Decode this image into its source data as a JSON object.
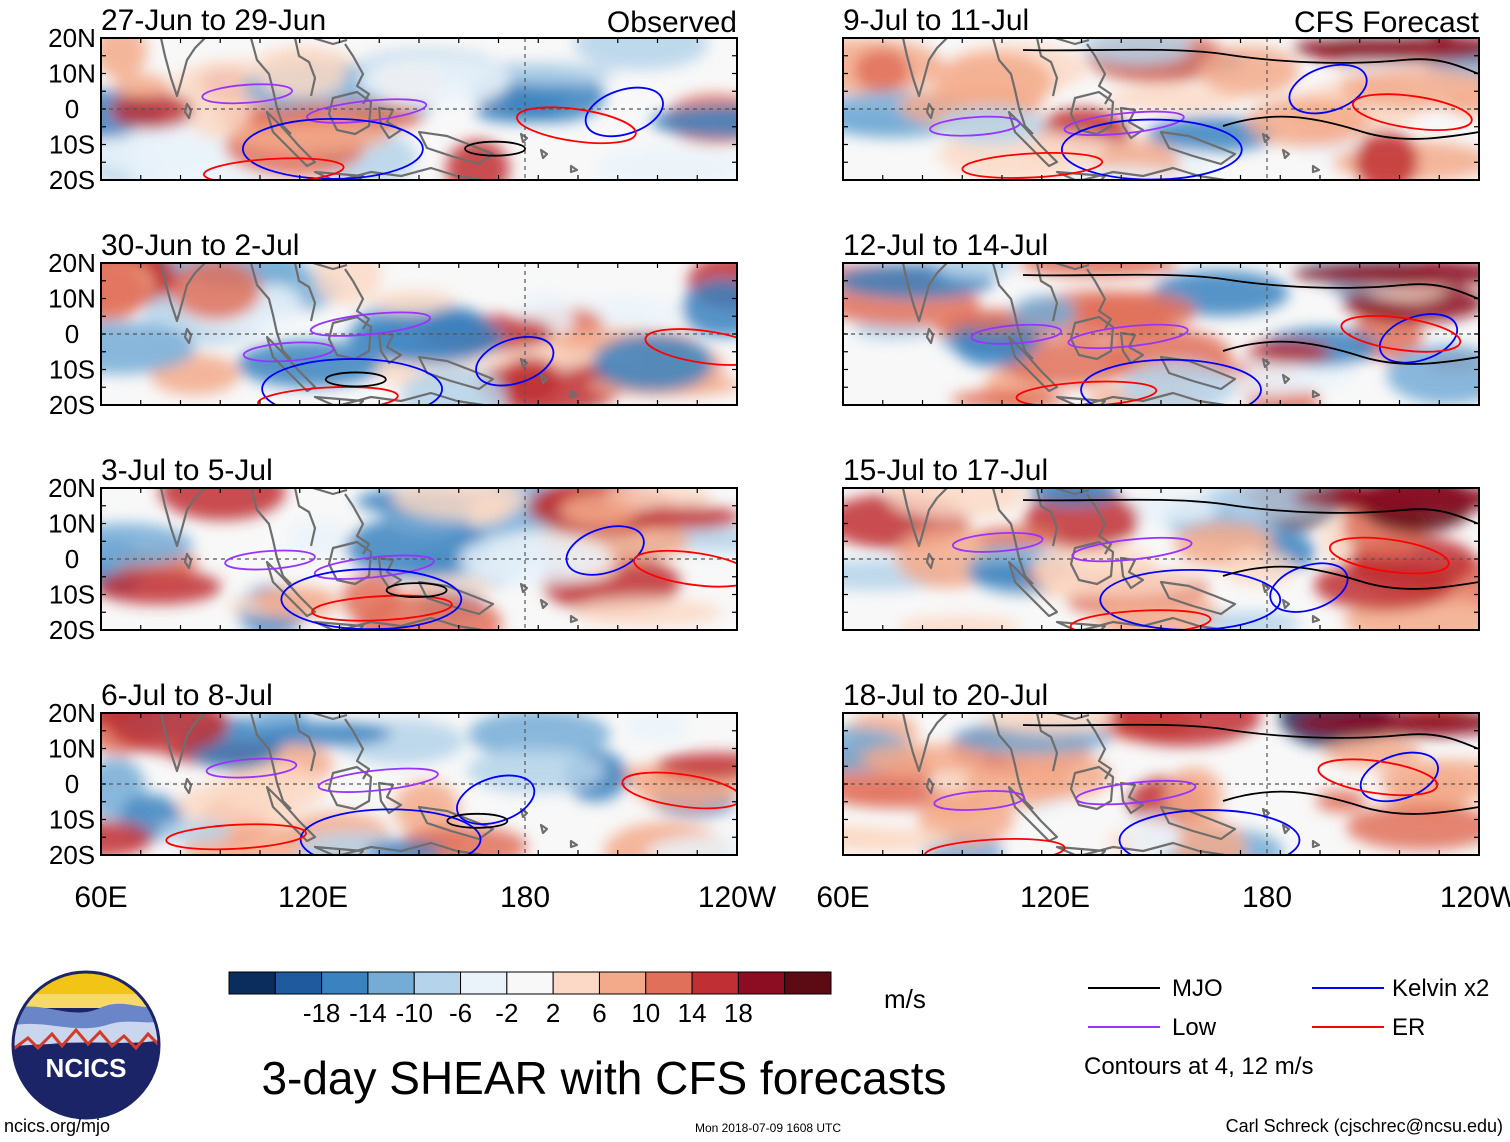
{
  "colors": {
    "mjo": "#000000",
    "low": "#9933ff",
    "kelvin": "#0000ff",
    "er": "#ff0000",
    "coast": "#6e6e6e"
  },
  "headers": {
    "observed": "Observed",
    "forecast": "CFS Forecast"
  },
  "panels": [
    {
      "title": "27-Jun to 29-Jun",
      "kind": "observed"
    },
    {
      "title": "30-Jun to 2-Jul",
      "kind": "observed"
    },
    {
      "title": "3-Jul to 5-Jul",
      "kind": "observed"
    },
    {
      "title": "6-Jul to 8-Jul",
      "kind": "observed"
    },
    {
      "title": "9-Jul to 11-Jul",
      "kind": "forecast"
    },
    {
      "title": "12-Jul to 14-Jul",
      "kind": "forecast"
    },
    {
      "title": "15-Jul to 17-Jul",
      "kind": "forecast"
    },
    {
      "title": "18-Jul to 20-Jul",
      "kind": "forecast"
    }
  ],
  "lat_labels": [
    "20N",
    "10N",
    "0",
    "10S",
    "20S"
  ],
  "lon_labels": [
    "60E",
    "120E",
    "180",
    "120W"
  ],
  "colorbar": {
    "colors": [
      "#0a2d5e",
      "#1f5a9e",
      "#3a82c0",
      "#74acd6",
      "#b5d3ea",
      "#eaf3fa",
      "#f8f8f8",
      "#fbd9c6",
      "#f3aa8b",
      "#e1705b",
      "#bf2f33",
      "#8c0d22",
      "#5c0a14"
    ],
    "tick_labels": [
      "-18",
      "-14",
      "-10",
      "-6",
      "-2",
      "2",
      "6",
      "10",
      "14",
      "18"
    ],
    "units": "m/s"
  },
  "legend": {
    "items": [
      {
        "label": "MJO",
        "color_key": "mjo"
      },
      {
        "label": "Low",
        "color_key": "low"
      },
      {
        "label": "Kelvin x2",
        "color_key": "kelvin"
      },
      {
        "label": "ER",
        "color_key": "er"
      }
    ],
    "note": "Contours at 4, 12 m/s"
  },
  "logo_text": "NCICS",
  "main_title": "3-day SHEAR with CFS forecasts",
  "footer": {
    "url": "ncics.org/mjo",
    "timestamp": "Mon 2018-07-09 1608 UTC",
    "author": "Carl Schreck (cjschrec@ncsu.edu)"
  }
}
